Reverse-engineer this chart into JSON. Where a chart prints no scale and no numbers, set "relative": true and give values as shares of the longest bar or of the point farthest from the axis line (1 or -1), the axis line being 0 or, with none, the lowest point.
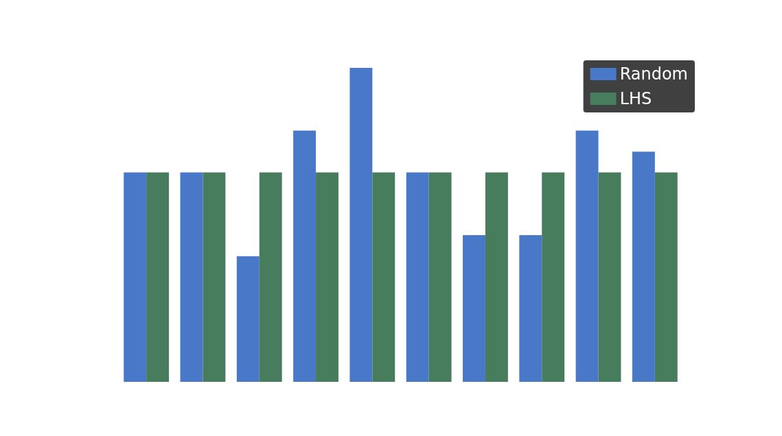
{
  "chart_data": {
    "type": "bar",
    "relative": true,
    "categories": [
      null,
      null,
      null,
      null,
      null,
      null,
      null,
      null,
      null,
      null
    ],
    "series": [
      {
        "name": "Random",
        "color": "#4a78c9",
        "values": [
          0.667,
          0.667,
          0.4,
          0.8,
          1,
          0.667,
          0.467,
          0.467,
          0.8,
          0.733
        ]
      },
      {
        "name": "LHS",
        "color": "#477d5c",
        "values": [
          0.667,
          0.667,
          0.667,
          0.667,
          0.667,
          0.667,
          0.667,
          0.667,
          0.667,
          0.667
        ]
      }
    ],
    "legend": "top right"
  }
}
